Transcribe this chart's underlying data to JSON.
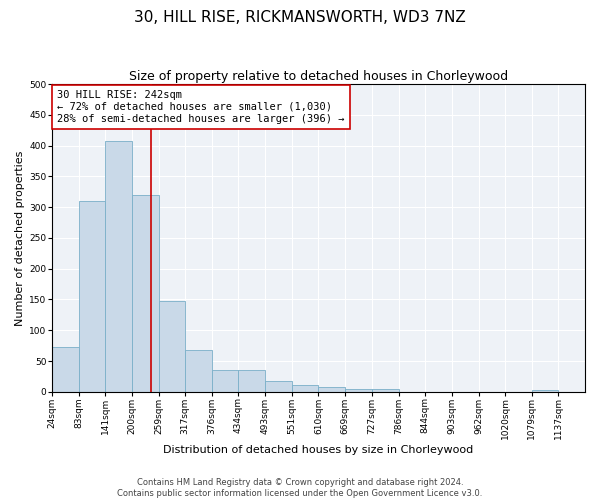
{
  "title": "30, HILL RISE, RICKMANSWORTH, WD3 7NZ",
  "subtitle": "Size of property relative to detached houses in Chorleywood",
  "xlabel": "Distribution of detached houses by size in Chorleywood",
  "ylabel": "Number of detached properties",
  "footer_line1": "Contains HM Land Registry data © Crown copyright and database right 2024.",
  "footer_line2": "Contains public sector information licensed under the Open Government Licence v3.0.",
  "bin_edges": [
    24,
    83,
    141,
    200,
    259,
    317,
    376,
    434,
    493,
    551,
    610,
    669,
    727,
    786,
    844,
    903,
    962,
    1020,
    1079,
    1137,
    1196
  ],
  "bar_heights": [
    72,
    310,
    408,
    320,
    148,
    68,
    36,
    36,
    18,
    11,
    7,
    5,
    4,
    0,
    0,
    0,
    0,
    0,
    3,
    0
  ],
  "bar_color": "#c9d9e8",
  "bar_edge_color": "#7aafc8",
  "property_size": 242,
  "vline_color": "#cc0000",
  "annotation_text": "30 HILL RISE: 242sqm\n← 72% of detached houses are smaller (1,030)\n28% of semi-detached houses are larger (396) →",
  "annotation_box_color": "white",
  "annotation_box_edge_color": "#cc0000",
  "ylim": [
    0,
    500
  ],
  "yticks": [
    0,
    50,
    100,
    150,
    200,
    250,
    300,
    350,
    400,
    450,
    500
  ],
  "bg_color": "#eef2f7",
  "title_fontsize": 11,
  "subtitle_fontsize": 9,
  "annotation_fontsize": 7.5,
  "ylabel_fontsize": 8,
  "xlabel_fontsize": 8,
  "tick_labelsize": 6.5,
  "footer_fontsize": 6
}
